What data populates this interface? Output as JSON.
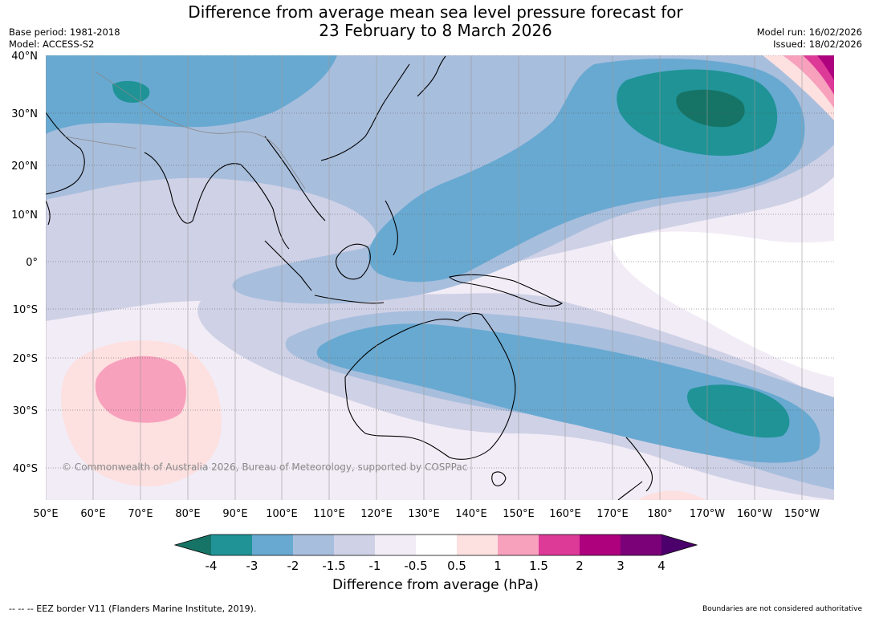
{
  "header": {
    "title_line1": "Difference from average mean sea level pressure forecast for",
    "title_line2": "23 February to 8 March 2026",
    "base_period": "Base period: 1981-2018",
    "model": "Model: ACCESS-S2",
    "model_run": "Model run: 16/02/2026",
    "issued": "Issued: 18/02/2026"
  },
  "map": {
    "lat_labels": [
      "40°N",
      "30°N",
      "20°N",
      "10°N",
      "0°",
      "10°S",
      "20°S",
      "30°S",
      "40°S"
    ],
    "lat_values": [
      40,
      30,
      20,
      10,
      0,
      -10,
      -20,
      -30,
      -40
    ],
    "lon_labels": [
      "50°E",
      "60°E",
      "70°E",
      "80°E",
      "90°E",
      "100°E",
      "110°E",
      "120°E",
      "130°E",
      "140°E",
      "150°E",
      "160°E",
      "170°E",
      "180°",
      "170°W",
      "160°W",
      "150°W"
    ],
    "lon_values": [
      50,
      60,
      70,
      80,
      90,
      100,
      110,
      120,
      130,
      140,
      150,
      160,
      170,
      180,
      190,
      200,
      210
    ],
    "copyright": "© Commonwealth of Australia 2026, Bureau of Meteorology, supported by COSPPac"
  },
  "colorbar": {
    "ticks": [
      "-4",
      "-3",
      "-2",
      "-1.5",
      "-1",
      "-0.5",
      "0.5",
      "1",
      "1.5",
      "2",
      "3",
      "4"
    ],
    "colors": [
      "#167466",
      "#1f9396",
      "#68a9d1",
      "#a8bedd",
      "#cfd1e6",
      "#f2ecf6",
      "#ffffff",
      "#fde0e0",
      "#f7a1bd",
      "#dd3a98",
      "#ad017e",
      "#7a0178",
      "#4b006b"
    ],
    "title": "Difference from average (hPa)"
  },
  "footer": {
    "left": "--  --  -- EEZ border V11 (Flanders Marine Institute, 2019).",
    "right": "Boundaries are not considered authoritative"
  }
}
